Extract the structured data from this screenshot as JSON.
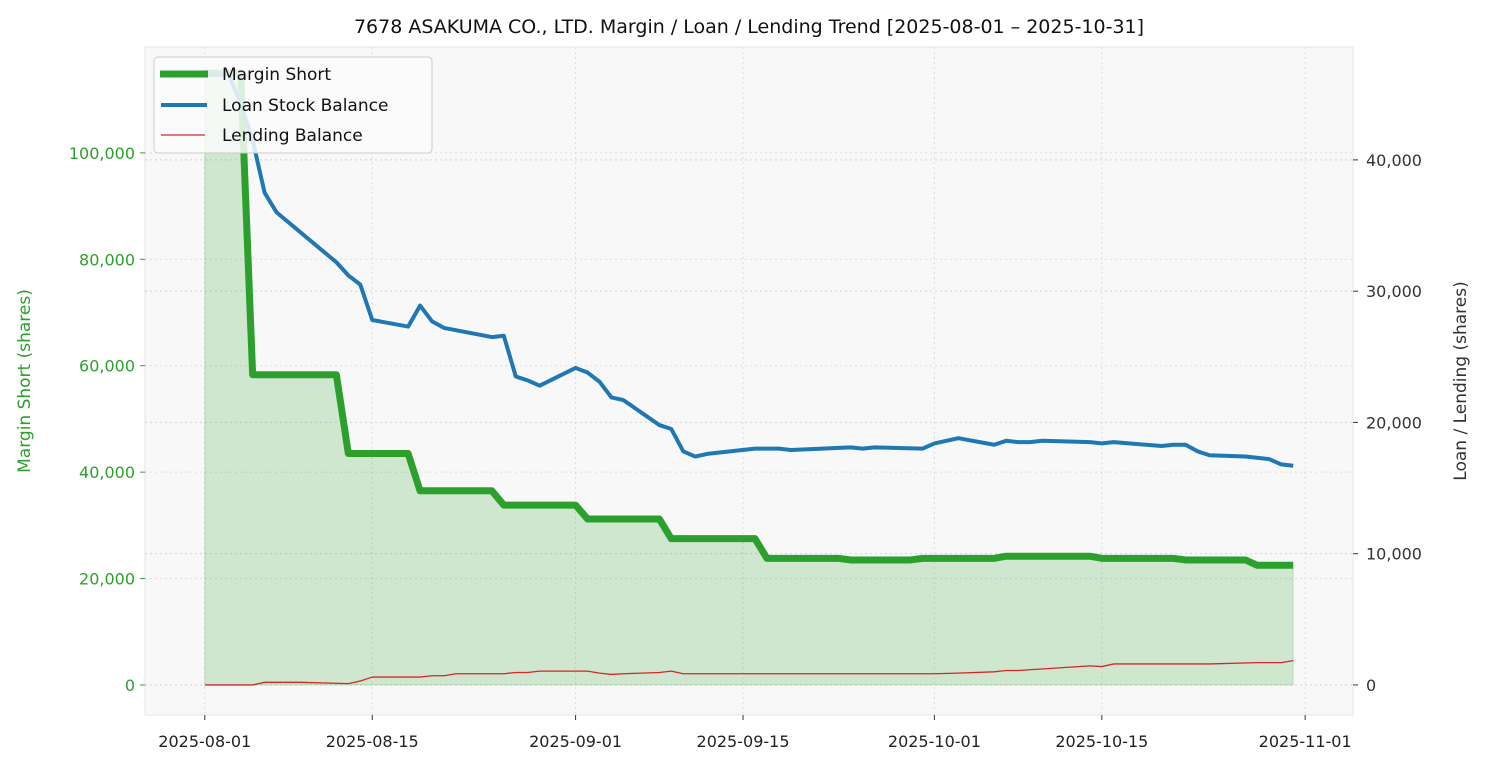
{
  "chart_data": {
    "type": "line",
    "title": "7678 ASAKUMA CO., LTD. Margin / Loan / Lending Trend [2025-08-01 – 2025-10-31]",
    "xlabel": "",
    "ylabel_left": "Margin Short (shares)",
    "ylabel_right": "Loan / Lending (shares)",
    "xlim": [
      "2025-07-27",
      "2025-11-05"
    ],
    "ylim_left": [
      -5640,
      119900
    ],
    "ylim_right": [
      -2290,
      48600
    ],
    "x_ticks": [
      "2025-08-01",
      "2025-08-15",
      "2025-09-01",
      "2025-09-15",
      "2025-10-01",
      "2025-10-15",
      "2025-11-01"
    ],
    "y_ticks_left": [
      0,
      20000,
      40000,
      60000,
      80000,
      100000
    ],
    "y_ticks_left_labels": [
      "0",
      "20,000",
      "40,000",
      "60,000",
      "80,000",
      "100,000"
    ],
    "y_ticks_right": [
      0,
      10000,
      20000,
      30000,
      40000
    ],
    "y_ticks_right_labels": [
      "0",
      "10,000",
      "20,000",
      "30,000",
      "40,000"
    ],
    "grid": true,
    "legend_position": "top-left",
    "colors": {
      "margin": "#2ca02c",
      "loan": "#1f77b4",
      "lending": "#d62728",
      "left_axis": "#2ca02c",
      "right_axis": "#333333"
    },
    "series": [
      {
        "name": "Margin Short",
        "axis": "left",
        "fill": true,
        "x": [
          "2025-08-01",
          "2025-08-04",
          "2025-08-05",
          "2025-08-12",
          "2025-08-13",
          "2025-08-18",
          "2025-08-19",
          "2025-08-25",
          "2025-08-26",
          "2025-09-01",
          "2025-09-02",
          "2025-09-08",
          "2025-09-09",
          "2025-09-16",
          "2025-09-17",
          "2025-09-23",
          "2025-09-24",
          "2025-09-29",
          "2025-09-30",
          "2025-10-06",
          "2025-10-07",
          "2025-10-14",
          "2025-10-15",
          "2025-10-21",
          "2025-10-22",
          "2025-10-27",
          "2025-10-28",
          "2025-10-31"
        ],
        "values": [
          115000,
          115000,
          58300,
          58300,
          43500,
          43500,
          36500,
          36500,
          33800,
          33800,
          31200,
          31200,
          27500,
          27500,
          23800,
          23800,
          23500,
          23500,
          23800,
          23800,
          24200,
          24200,
          23800,
          23800,
          23500,
          23500,
          22500,
          22500
        ]
      },
      {
        "name": "Loan Stock Balance",
        "axis": "right",
        "x": [
          "2025-08-01",
          "2025-08-03",
          "2025-08-04",
          "2025-08-05",
          "2025-08-06",
          "2025-08-07",
          "2025-08-12",
          "2025-08-13",
          "2025-08-14",
          "2025-08-15",
          "2025-08-18",
          "2025-08-19",
          "2025-08-20",
          "2025-08-21",
          "2025-08-25",
          "2025-08-26",
          "2025-08-27",
          "2025-08-28",
          "2025-08-29",
          "2025-09-01",
          "2025-09-02",
          "2025-09-03",
          "2025-09-04",
          "2025-09-05",
          "2025-09-08",
          "2025-09-09",
          "2025-09-10",
          "2025-09-11",
          "2025-09-12",
          "2025-09-16",
          "2025-09-18",
          "2025-09-19",
          "2025-09-24",
          "2025-09-25",
          "2025-09-26",
          "2025-09-30",
          "2025-10-01",
          "2025-10-02",
          "2025-10-03",
          "2025-10-06",
          "2025-10-07",
          "2025-10-08",
          "2025-10-09",
          "2025-10-10",
          "2025-10-14",
          "2025-10-15",
          "2025-10-16",
          "2025-10-20",
          "2025-10-21",
          "2025-10-22",
          "2025-10-23",
          "2025-10-24",
          "2025-10-27",
          "2025-10-29",
          "2025-10-30",
          "2025-10-31"
        ],
        "values": [
          46500,
          46500,
          44300,
          41500,
          37500,
          36000,
          32200,
          31200,
          30500,
          27800,
          27300,
          28900,
          27700,
          27200,
          26500,
          26600,
          23500,
          23200,
          22800,
          24150,
          23800,
          23100,
          21900,
          21700,
          19800,
          19500,
          17800,
          17400,
          17600,
          18000,
          18000,
          17900,
          18100,
          18000,
          18100,
          18000,
          18400,
          18600,
          18800,
          18300,
          18600,
          18500,
          18500,
          18600,
          18500,
          18400,
          18500,
          18200,
          18300,
          18300,
          17800,
          17500,
          17400,
          17200,
          16800,
          16700
        ]
      },
      {
        "name": "Lending Balance",
        "axis": "right",
        "x": [
          "2025-08-01",
          "2025-08-05",
          "2025-08-06",
          "2025-08-09",
          "2025-08-13",
          "2025-08-14",
          "2025-08-15",
          "2025-08-19",
          "2025-08-20",
          "2025-08-21",
          "2025-08-22",
          "2025-08-26",
          "2025-08-27",
          "2025-08-28",
          "2025-08-29",
          "2025-09-02",
          "2025-09-03",
          "2025-09-04",
          "2025-09-05",
          "2025-09-08",
          "2025-09-09",
          "2025-09-10",
          "2025-10-01",
          "2025-10-03",
          "2025-10-06",
          "2025-10-07",
          "2025-10-08",
          "2025-10-14",
          "2025-10-15",
          "2025-10-16",
          "2025-10-24",
          "2025-10-28",
          "2025-10-30",
          "2025-10-31"
        ],
        "values": [
          0,
          0,
          200,
          200,
          100,
          300,
          600,
          600,
          700,
          700,
          850,
          850,
          950,
          950,
          1050,
          1050,
          900,
          800,
          850,
          950,
          1050,
          850,
          850,
          900,
          1000,
          1100,
          1100,
          1450,
          1400,
          1600,
          1600,
          1700,
          1700,
          1850
        ]
      }
    ]
  }
}
